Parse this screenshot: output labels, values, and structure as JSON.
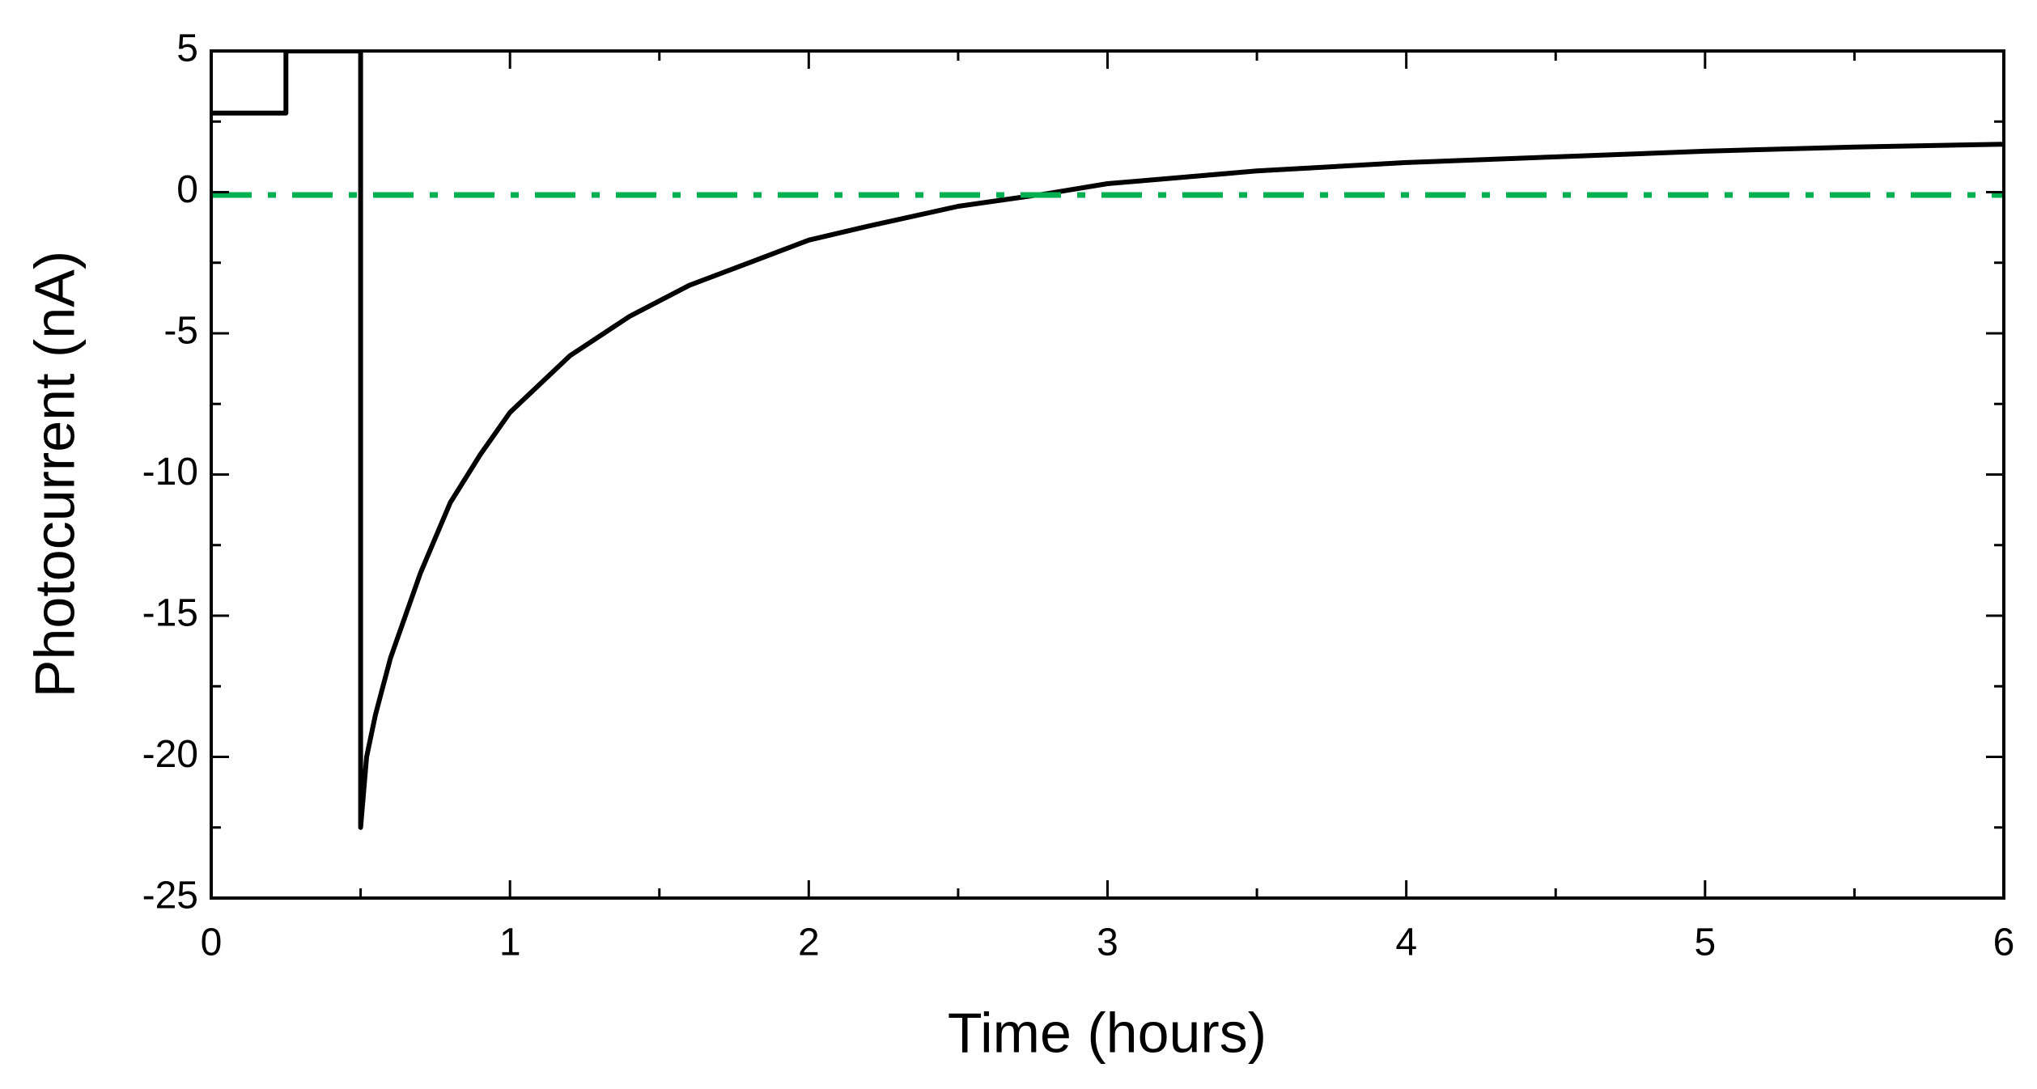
{
  "chart_data": {
    "type": "line",
    "x_label": "Time (hours)",
    "y_label": "Photocurrent (nA)",
    "xlim": [
      0,
      6
    ],
    "xticks": [
      0,
      1,
      2,
      3,
      4,
      5,
      6
    ],
    "xminorticks": [
      0.5,
      1.5,
      2.5,
      3.5,
      4.5,
      5.5
    ],
    "ylim": [
      -25,
      5
    ],
    "yticks": [
      -25,
      -20,
      -15,
      -10,
      -5,
      0,
      5
    ],
    "yminorticks": [
      -22.5,
      -17.5,
      -12.5,
      -7.5,
      -2.5,
      2.5
    ],
    "series": [
      {
        "color": "#000000",
        "style": "solid",
        "x": [
          0,
          0.25,
          0.25,
          0.5,
          0.5,
          0.52,
          0.55,
          0.6,
          0.7,
          0.8,
          0.9,
          1.0,
          1.2,
          1.4,
          1.6,
          1.8,
          2.0,
          2.2,
          2.5,
          2.8,
          3.0,
          3.5,
          4.0,
          4.5,
          5.0,
          5.5,
          6.0
        ],
        "values": [
          2.8,
          2.8,
          5,
          5,
          -22.5,
          -20,
          -18.5,
          -16.5,
          -13.5,
          -11,
          -9.3,
          -7.8,
          -5.8,
          -4.4,
          -3.3,
          -2.5,
          -1.7,
          -1.2,
          -0.5,
          -0.05,
          0.3,
          0.75,
          1.05,
          1.25,
          1.45,
          1.6,
          1.7
        ]
      },
      {
        "color": "#00b050",
        "style": "dashdot",
        "x": [
          0,
          6
        ],
        "values": [
          -0.1,
          -0.1
        ]
      }
    ]
  }
}
